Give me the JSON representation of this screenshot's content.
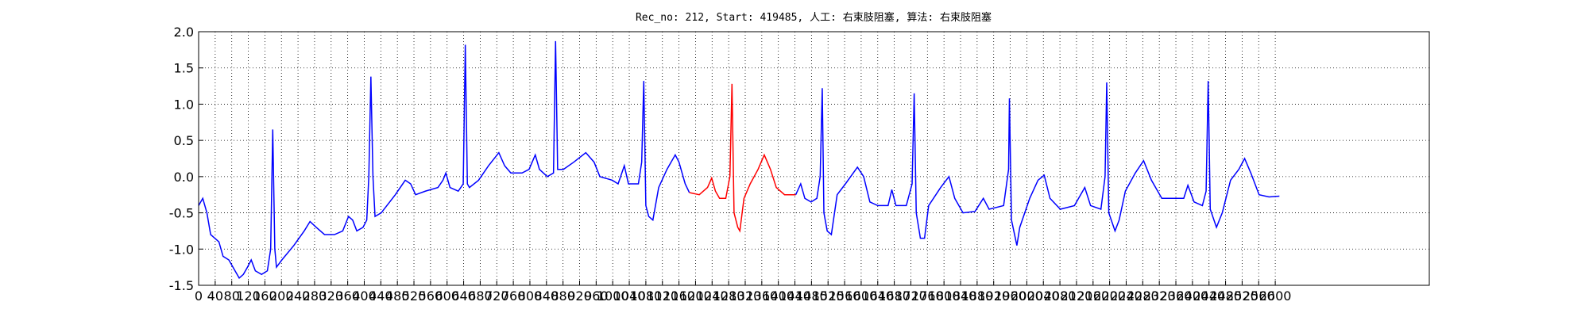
{
  "chart_data": {
    "type": "line",
    "title": "Rec_no: 212, Start: 419485, 人工: 右束肢阻塞, 算法: 右束肢阻塞",
    "xlim": [
      0,
      2972
    ],
    "ylim": [
      -1.5,
      2.0
    ],
    "grid": true,
    "xticks": [
      0,
      40,
      80,
      120,
      160,
      200,
      240,
      280,
      320,
      360,
      400,
      440,
      480,
      520,
      560,
      600,
      640,
      680,
      720,
      760,
      800,
      840,
      880,
      920,
      960,
      1000,
      1040,
      1080,
      1120,
      1160,
      1200,
      1240,
      1280,
      1320,
      1360,
      1400,
      1440,
      1480,
      1520,
      1560,
      1600,
      1640,
      1680,
      1720,
      1760,
      1800,
      1840,
      1880,
      1920,
      1960,
      2000,
      2040,
      2080,
      2120,
      2160,
      2200,
      2240,
      2280,
      2320,
      2360,
      2400,
      2440,
      2480,
      2520,
      2560,
      2600
    ],
    "yticks": [
      {
        "value": 2.0,
        "label": "2.0"
      },
      1.5,
      {
        "value": 1.0,
        "label": "1.0"
      },
      0.5,
      {
        "value": 0.0,
        "label": "0.0"
      },
      -0.5,
      {
        "value": -1.0,
        "label": "-1.0"
      },
      -1.5
    ],
    "series": [
      {
        "color": "#0000ff",
        "x": [
          0,
          10,
          20,
          29,
          39,
          49,
          59,
          73,
          88,
          98,
          108,
          118,
          127,
          137,
          152,
          166,
          174,
          179,
          184,
          188,
          201,
          230,
          255,
          269,
          284,
          304,
          328,
          348,
          362,
          372,
          382,
          397,
          406,
          411,
          416,
          421,
          426,
          441,
          475,
          499,
          512,
          524,
          548,
          578,
          590,
          597,
          607,
          627,
          639,
          644,
          649,
          654,
          676,
          700,
          725,
          739,
          754,
          781,
          798,
          813,
          823,
          842,
          857,
          862,
          867,
          881,
          906,
          935,
          955,
          969,
          999,
          1013,
          1028,
          1038,
          1062,
          1070,
          1075,
          1080,
          1087,
          1097,
          1111,
          1131,
          1151,
          1160,
          1175,
          1185
        ],
        "values": [
          -0.4,
          -0.3,
          -0.5,
          -0.8,
          -0.85,
          -0.9,
          -1.1,
          -1.15,
          -1.3,
          -1.4,
          -1.35,
          -1.25,
          -1.15,
          -1.3,
          -1.35,
          -1.3,
          -1.0,
          0.65,
          -1.0,
          -1.25,
          -1.15,
          -0.95,
          -0.75,
          -0.62,
          -0.7,
          -0.8,
          -0.8,
          -0.75,
          -0.55,
          -0.6,
          -0.75,
          -0.7,
          -0.6,
          0.0,
          1.38,
          0.0,
          -0.55,
          -0.5,
          -0.25,
          -0.05,
          -0.1,
          -0.25,
          -0.2,
          -0.15,
          -0.05,
          0.05,
          -0.15,
          -0.2,
          -0.1,
          1.82,
          -0.1,
          -0.15,
          -0.05,
          0.15,
          0.33,
          0.15,
          0.05,
          0.05,
          0.1,
          0.3,
          0.1,
          0.0,
          0.05,
          1.87,
          0.1,
          0.1,
          0.2,
          0.33,
          0.2,
          0.0,
          -0.05,
          -0.1,
          0.15,
          -0.1,
          -0.1,
          0.2,
          1.32,
          -0.4,
          -0.55,
          -0.6,
          -0.15,
          0.1,
          0.3,
          0.2,
          -0.1,
          -0.22
        ]
      },
      {
        "color": "#ff0000",
        "x": [
          1185,
          1209,
          1229,
          1239,
          1248,
          1258,
          1273,
          1283,
          1288,
          1293,
          1302,
          1307,
          1317,
          1332,
          1351,
          1366,
          1381,
          1395,
          1415,
          1442
        ],
        "values": [
          -0.22,
          -0.25,
          -0.15,
          -0.02,
          -0.2,
          -0.3,
          -0.3,
          0.0,
          1.28,
          -0.5,
          -0.7,
          -0.75,
          -0.3,
          -0.1,
          0.1,
          0.3,
          0.1,
          -0.15,
          -0.25,
          -0.25
        ]
      },
      {
        "color": "#0000ff",
        "x": [
          1442,
          1454,
          1464,
          1479,
          1493,
          1501,
          1506,
          1510,
          1518,
          1528,
          1542,
          1562,
          1591,
          1606,
          1621,
          1640,
          1665,
          1674,
          1684,
          1709,
          1723,
          1728,
          1733,
          1743,
          1753,
          1763,
          1792,
          1812,
          1826,
          1846,
          1875,
          1895,
          1909,
          1944,
          1956,
          1958,
          1963,
          1976,
          1983,
          2007,
          2027,
          2042,
          2056,
          2081,
          2115,
          2140,
          2154,
          2179,
          2189,
          2193,
          2198,
          2213,
          2223,
          2238,
          2262,
          2282,
          2301,
          2326,
          2360,
          2379,
          2389,
          2404,
          2424,
          2433,
          2438,
          2443,
          2458,
          2472,
          2492,
          2512,
          2526,
          2541,
          2561,
          2585,
          2610
        ],
        "values": [
          -0.25,
          -0.1,
          -0.3,
          -0.35,
          -0.3,
          0.0,
          1.22,
          -0.5,
          -0.75,
          -0.8,
          -0.25,
          -0.1,
          0.13,
          0.0,
          -0.35,
          -0.4,
          -0.4,
          -0.18,
          -0.4,
          -0.4,
          -0.1,
          1.15,
          -0.5,
          -0.85,
          -0.85,
          -0.4,
          -0.15,
          0.0,
          -0.3,
          -0.5,
          -0.48,
          -0.3,
          -0.45,
          -0.4,
          0.1,
          1.08,
          -0.6,
          -0.95,
          -0.7,
          -0.3,
          -0.05,
          0.02,
          -0.3,
          -0.45,
          -0.4,
          -0.15,
          -0.4,
          -0.45,
          0.0,
          1.3,
          -0.5,
          -0.75,
          -0.6,
          -0.2,
          0.05,
          0.22,
          -0.05,
          -0.3,
          -0.3,
          -0.3,
          -0.12,
          -0.35,
          -0.4,
          -0.2,
          1.32,
          -0.45,
          -0.7,
          -0.5,
          -0.05,
          0.1,
          0.25,
          0.05,
          -0.25,
          -0.28,
          -0.27
        ]
      }
    ]
  }
}
